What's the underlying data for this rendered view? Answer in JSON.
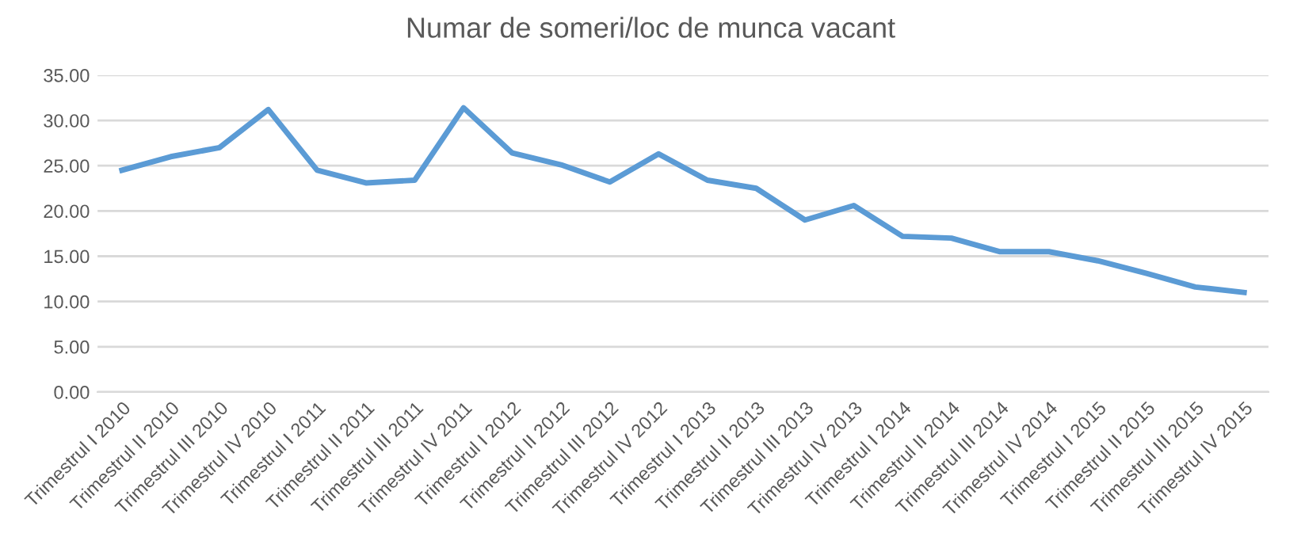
{
  "chart_data": {
    "type": "line",
    "title": "Numar de someri/loc de munca vacant",
    "categories": [
      "Trimestrul I 2010",
      "Trimestrul II 2010",
      "Trimestrul III 2010",
      "Trimestrul IV 2010",
      "Trimestrul I 2011",
      "Trimestrul II 2011",
      "Trimestrul III 2011",
      "Trimestrul IV 2011",
      "Trimestrul I 2012",
      "Trimestrul II 2012",
      "Trimestrul III 2012",
      "Trimestrul IV 2012",
      "Trimestrul I 2013",
      "Trimestrul II 2013",
      "Trimestrul III 2013",
      "Trimestrul IV 2013",
      "Trimestrul I 2014",
      "Trimestrul II 2014",
      "Trimestrul III 2014",
      "Trimestrul IV 2014",
      "Trimestrul I 2015",
      "Trimestrul II 2015",
      "Trimestrul III 2015",
      "Trimestrul IV 2015"
    ],
    "series": [
      {
        "color": "#5b9bd5",
        "values": [
          24.5,
          26.0,
          27.0,
          31.2,
          24.5,
          23.1,
          23.4,
          31.4,
          26.4,
          25.1,
          23.2,
          26.3,
          23.4,
          22.5,
          19.0,
          20.6,
          17.2,
          17.0,
          15.5,
          15.5,
          14.5,
          13.1,
          11.6,
          11.0
        ]
      }
    ],
    "ylim": [
      0,
      35
    ],
    "yticks": [
      {
        "value": 0,
        "label": "0.00"
      },
      {
        "value": 5,
        "label": "5.00"
      },
      {
        "value": 10,
        "label": "10.00"
      },
      {
        "value": 15,
        "label": "15.00"
      },
      {
        "value": 20,
        "label": "20.00"
      },
      {
        "value": 25,
        "label": "25.00"
      },
      {
        "value": 30,
        "label": "30.00"
      },
      {
        "value": 35,
        "label": "35.00"
      }
    ],
    "grid": "y",
    "legend": false,
    "marker": "none",
    "line_style": "solid"
  }
}
